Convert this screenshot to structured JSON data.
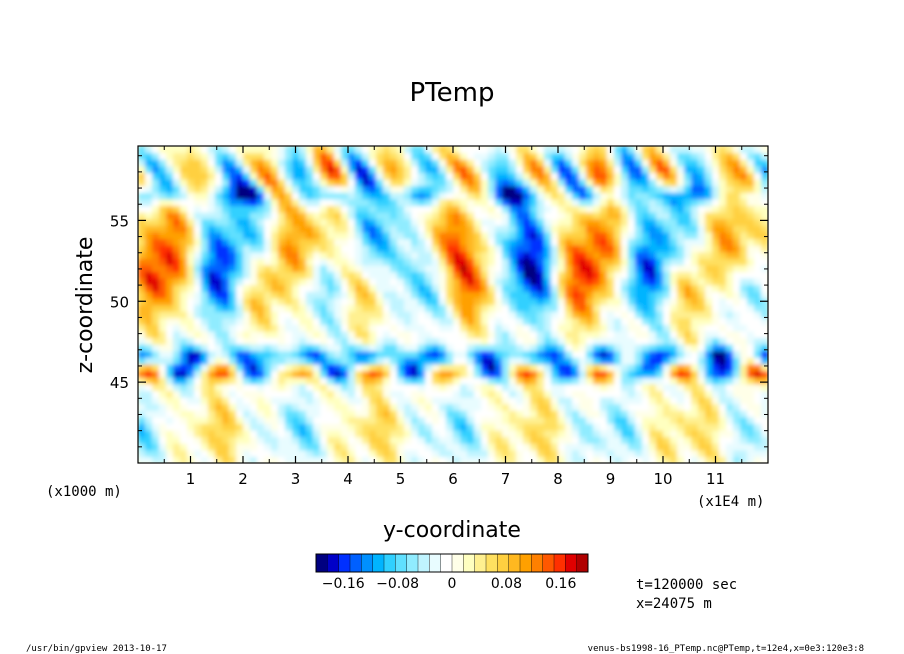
{
  "chart_data": {
    "type": "heatmap",
    "title": "PTemp",
    "xlabel": "y-coordinate",
    "ylabel": "z-coordinate",
    "x_unit_label": "(x1E4 m)",
    "y_unit_label": "(x1000 m)",
    "xlim": [
      0,
      12
    ],
    "ylim": [
      40,
      59.6
    ],
    "x_ticks": [
      "1",
      "2",
      "3",
      "4",
      "5",
      "6",
      "7",
      "8",
      "9",
      "10",
      "11"
    ],
    "y_ticks": [
      "45",
      "50",
      "55"
    ],
    "colorbar": {
      "range": [
        -0.2,
        0.2
      ],
      "tick_labels": [
        "−0.16",
        "−0.08",
        "0",
        "0.08",
        "0.16"
      ],
      "tick_values": [
        -0.16,
        -0.08,
        0,
        0.08,
        0.16
      ],
      "colors": [
        "#000080",
        "#0000c8",
        "#0030ff",
        "#0060ff",
        "#0090ff",
        "#00b4ff",
        "#30d0ff",
        "#60e0ff",
        "#90ecff",
        "#c0f4ff",
        "#e8fcff",
        "#ffffff",
        "#ffffe8",
        "#ffffc0",
        "#fff090",
        "#ffe060",
        "#ffd040",
        "#ffb820",
        "#ffa000",
        "#ff8000",
        "#ff5800",
        "#ff3000",
        "#e00000",
        "#b00000"
      ]
    },
    "annotations": [
      "t=120000 sec",
      "x=24075 m"
    ]
  },
  "footer": {
    "left": "/usr/bin/gpview   2013-10-17",
    "right": "venus-bs1998-16_PTemp.nc@PTemp,t=12e4,x=0e3:120e3:8"
  }
}
